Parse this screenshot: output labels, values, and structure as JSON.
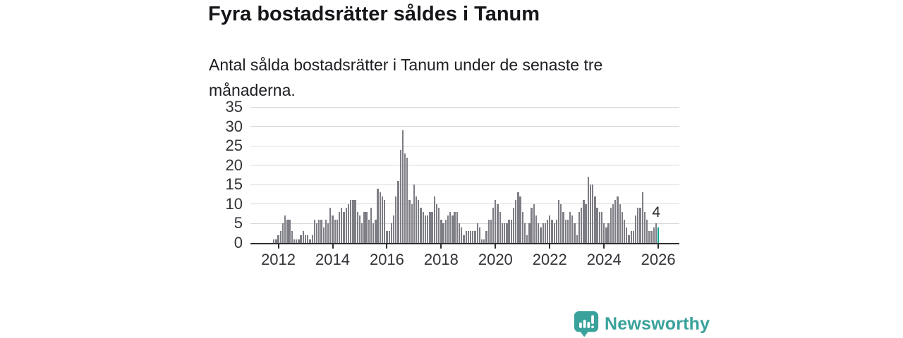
{
  "header": {
    "title": "Fyra bostadsrätter såldes i Tanum",
    "subtitle": "Antal sålda bostadsrätter i Tanum under de senaste tre månaderna."
  },
  "chart_data": {
    "type": "bar",
    "title": "Fyra bostadsrätter såldes i Tanum",
    "xlabel": "",
    "ylabel": "",
    "x_start": "2011-11",
    "interval": "monthly",
    "values": [
      1,
      1,
      2,
      3,
      5,
      7,
      6,
      6,
      3,
      1,
      1,
      1,
      2,
      3,
      2,
      2,
      1,
      2,
      6,
      5,
      6,
      6,
      4,
      6,
      5,
      9,
      7,
      6,
      6,
      8,
      9,
      8,
      9,
      10,
      11,
      11,
      11,
      8,
      7,
      5,
      8,
      8,
      6,
      9,
      5,
      6,
      14,
      13,
      12,
      11,
      3,
      3,
      5,
      7,
      12,
      16,
      24,
      29,
      23,
      22,
      11,
      10,
      15,
      12,
      11,
      9,
      8,
      7,
      7,
      8,
      8,
      12,
      10,
      9,
      6,
      5,
      6,
      7,
      8,
      7,
      8,
      8,
      5,
      4,
      2,
      3,
      3,
      3,
      3,
      3,
      5,
      4,
      1,
      1,
      3,
      6,
      6,
      9,
      11,
      10,
      8,
      5,
      5,
      5,
      6,
      6,
      9,
      11,
      13,
      12,
      8,
      5,
      2,
      5,
      9,
      10,
      7,
      5,
      4,
      5,
      5,
      6,
      7,
      6,
      5,
      6,
      11,
      10,
      8,
      6,
      6,
      8,
      7,
      5,
      2,
      8,
      9,
      11,
      10,
      17,
      15,
      15,
      12,
      9,
      8,
      8,
      5,
      4,
      5,
      9,
      10,
      11,
      12,
      10,
      8,
      6,
      4,
      2,
      3,
      3,
      7,
      9,
      9,
      13,
      8,
      6,
      3,
      3,
      4,
      5,
      4
    ],
    "highlight_index": 170,
    "highlight_value_label": "4",
    "ylim": [
      0,
      35
    ],
    "y_ticks": [
      0,
      5,
      10,
      15,
      20,
      25,
      30,
      35
    ],
    "x_tick_labels": [
      "2012",
      "2014",
      "2016",
      "2018",
      "2020",
      "2022",
      "2024",
      "2026"
    ],
    "x_first_tick_index": 2,
    "x_tick_every": 24,
    "grid": true,
    "legend": "none",
    "bar_color": "#7d7d85",
    "highlight_color": "#0aa396",
    "gridline_color": "#dadada",
    "axis_color": "#2f2f2f"
  },
  "footer": {
    "brand": "Newsworthy",
    "brand_color": "#3aa29b",
    "logo_icon": "newsworthy-speech-bubble-chart-icon"
  }
}
